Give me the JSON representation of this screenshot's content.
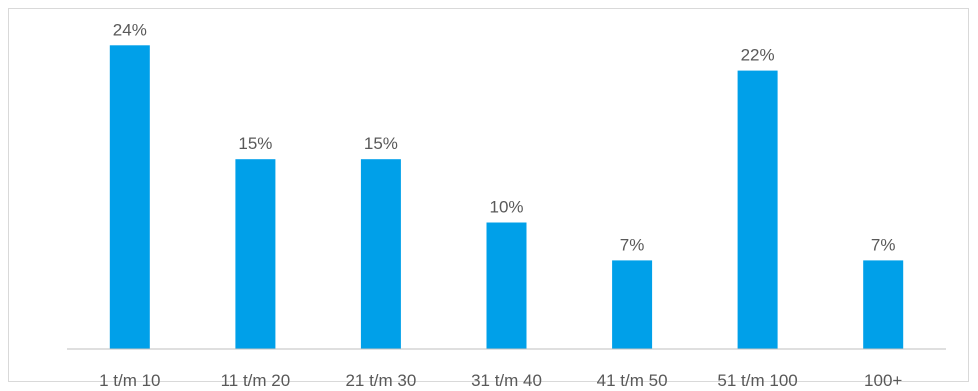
{
  "chart_data": {
    "type": "bar",
    "categories": [
      "1 t/m 10",
      "11 t/m 20",
      "21 t/m 30",
      "31 t/m 40",
      "41 t/m 50",
      "51 t/m 100",
      "100+"
    ],
    "values": [
      24,
      15,
      15,
      10,
      7,
      22,
      7
    ],
    "data_labels": [
      "24%",
      "15%",
      "15%",
      "10%",
      "7%",
      "22%",
      "7%"
    ],
    "unit": "%",
    "title": "",
    "xlabel": "",
    "ylabel": "",
    "ylim": [
      0,
      26
    ],
    "grid": false,
    "legend": "none",
    "bar_color": "#00a0e9"
  }
}
